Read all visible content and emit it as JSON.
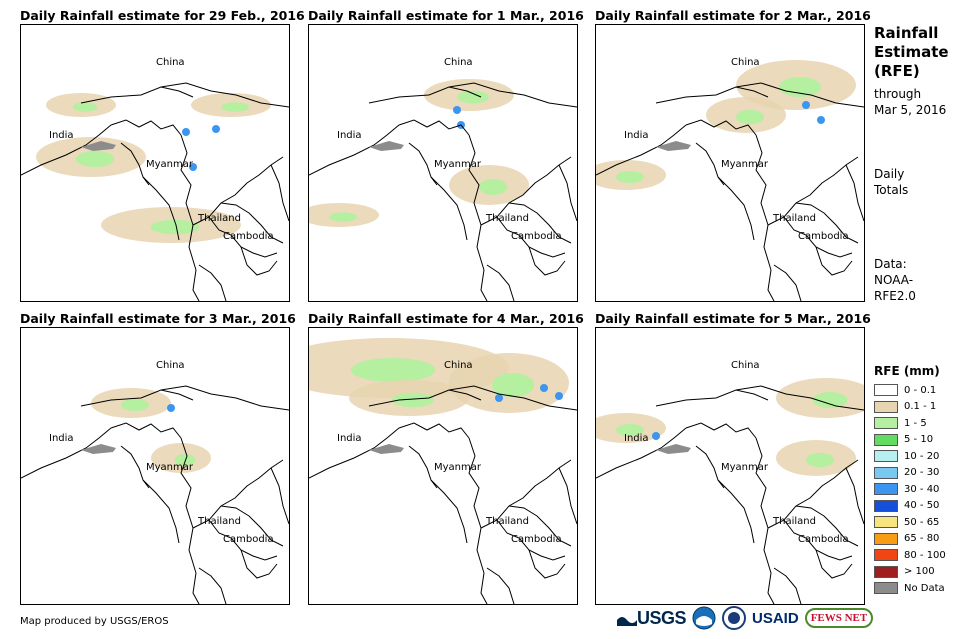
{
  "panels": [
    {
      "title": "Daily Rainfall estimate for 29 Feb., 2016",
      "rain": [
        [
          60,
          80,
          35,
          12
        ],
        [
          70,
          132,
          55,
          20
        ],
        [
          150,
          200,
          70,
          18
        ],
        [
          210,
          80,
          40,
          12
        ]
      ],
      "heavy": [
        [
          165,
          107
        ],
        [
          195,
          104
        ],
        [
          172,
          142
        ]
      ]
    },
    {
      "title": "Daily Rainfall estimate for 1 Mar., 2016",
      "rain": [
        [
          160,
          70,
          45,
          16
        ],
        [
          180,
          160,
          40,
          20
        ],
        [
          30,
          190,
          40,
          12
        ]
      ],
      "heavy": [
        [
          148,
          85
        ],
        [
          152,
          100
        ]
      ]
    },
    {
      "title": "Daily Rainfall estimate for 2 Mar., 2016",
      "rain": [
        [
          200,
          60,
          60,
          25
        ],
        [
          150,
          90,
          40,
          18
        ],
        [
          30,
          150,
          40,
          15
        ]
      ],
      "heavy": [
        [
          210,
          80
        ],
        [
          225,
          95
        ]
      ]
    },
    {
      "title": "Daily Rainfall estimate for 3 Mar., 2016",
      "rain": [
        [
          110,
          75,
          40,
          15
        ],
        [
          160,
          130,
          30,
          15
        ]
      ],
      "heavy": [
        [
          150,
          80
        ]
      ]
    },
    {
      "title": "Daily Rainfall estimate for 4 Mar., 2016",
      "rain": [
        [
          80,
          40,
          120,
          30
        ],
        [
          200,
          55,
          60,
          30
        ],
        [
          100,
          70,
          60,
          18
        ]
      ],
      "heavy": [
        [
          235,
          60
        ],
        [
          250,
          68
        ],
        [
          190,
          70
        ]
      ]
    },
    {
      "title": "Daily Rainfall estimate for 5 Mar., 2016",
      "rain": [
        [
          230,
          70,
          50,
          20
        ],
        [
          30,
          100,
          40,
          15
        ],
        [
          220,
          130,
          40,
          18
        ]
      ],
      "heavy": [
        [
          60,
          108
        ]
      ]
    }
  ],
  "map_labels": {
    "china": "China",
    "india": "India",
    "myanmar": "Myanmar",
    "thailand": "Thailand",
    "cambodia": "Cambodia"
  },
  "sidebar": {
    "title_line1": "Rainfall",
    "title_line2": "Estimate",
    "title_line3": "(RFE)",
    "through": "through",
    "date": "Mar 5, 2016",
    "daily": "Daily",
    "totals": "Totals",
    "data_label": "Data:",
    "data_source1": "NOAA-",
    "data_source2": "RFE2.0"
  },
  "legend": {
    "title": "RFE (mm)",
    "items": [
      {
        "label": "0 - 0.1",
        "color": "#ffffff"
      },
      {
        "label": "0.1 - 1",
        "color": "#e8d4b0"
      },
      {
        "label": "1 - 5",
        "color": "#b4f0a0"
      },
      {
        "label": "5 - 10",
        "color": "#64dc64"
      },
      {
        "label": "10 - 20",
        "color": "#b4f0f0"
      },
      {
        "label": "20 - 30",
        "color": "#78c8f0"
      },
      {
        "label": "30 - 40",
        "color": "#3c96f0"
      },
      {
        "label": "40 - 50",
        "color": "#1450dc"
      },
      {
        "label": "50 - 65",
        "color": "#f8e47c"
      },
      {
        "label": "65 - 80",
        "color": "#f89c14"
      },
      {
        "label": "80 - 100",
        "color": "#f04614"
      },
      {
        "label": "> 100",
        "color": "#a01e1e"
      },
      {
        "label": "No Data",
        "color": "#8c8c8c"
      }
    ]
  },
  "credit": "Map produced by USGS/EROS",
  "logos": {
    "usgs": "USGS",
    "usaid": "USAID",
    "fews": "FEWS NET"
  }
}
